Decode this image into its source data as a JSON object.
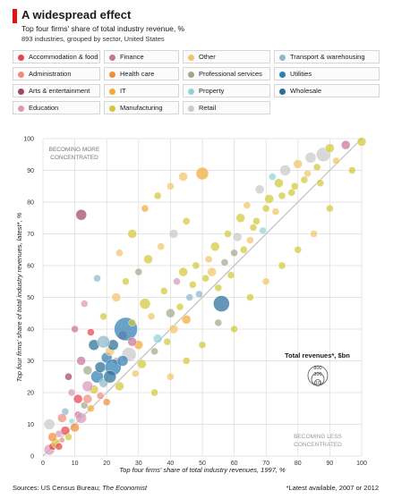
{
  "header": {
    "title": "A widespread effect",
    "subtitle": "Top four firms' share of total industry revenue, %",
    "subtitle2": "893 industries, grouped by sector, United States"
  },
  "legend": {
    "items": [
      {
        "label": "Accommodation & food",
        "color": "#e8434f"
      },
      {
        "label": "Finance",
        "color": "#c9749a"
      },
      {
        "label": "Other",
        "color": "#f2c46b"
      },
      {
        "label": "Transport & warehousing",
        "color": "#8fb9c9"
      },
      {
        "label": "Administration",
        "color": "#f18c7e"
      },
      {
        "label": "Health care",
        "color": "#f08e3a"
      },
      {
        "label": "Professional services",
        "color": "#a3a88a"
      },
      {
        "label": "Utilities",
        "color": "#2f7fb3"
      },
      {
        "label": "Arts & entertainment",
        "color": "#9c4a5e"
      },
      {
        "label": "IT",
        "color": "#f4a93b"
      },
      {
        "label": "Property",
        "color": "#8fd3d8"
      },
      {
        "label": "Wholesale",
        "color": "#2a6f97"
      },
      {
        "label": "Education",
        "color": "#d79ab8"
      },
      {
        "label": "Manufacturing",
        "color": "#d2c73a"
      },
      {
        "label": "Retail",
        "color": "#c9c9c9"
      }
    ]
  },
  "chart_data": {
    "type": "scatter",
    "xlabel": "Top four firms' share of total industry revenues, 1997, %",
    "ylabel": "Top four firms' share of total industry revenues, latest*, %",
    "xlim": [
      0,
      100
    ],
    "ylim": [
      0,
      100
    ],
    "x_ticks": [
      0,
      10,
      20,
      30,
      40,
      50,
      60,
      70,
      80,
      90,
      100
    ],
    "y_ticks": [
      0,
      10,
      20,
      30,
      40,
      50,
      60,
      70,
      80,
      90,
      100
    ],
    "grid": true,
    "annotations": {
      "upper": [
        "BECOMING MORE",
        "CONCENTRATED"
      ],
      "lower": [
        "BECOMING LESS",
        "CONCENTRATED"
      ]
    },
    "size_legend": {
      "title": "Total revenues*, $bn",
      "values": [
        "800",
        "300",
        "10"
      ]
    },
    "points": [
      {
        "x": 2,
        "y": 2,
        "s": 6,
        "c": 12
      },
      {
        "x": 3,
        "y": 3,
        "s": 4,
        "c": 0
      },
      {
        "x": 4,
        "y": 4,
        "s": 5,
        "c": 13
      },
      {
        "x": 5,
        "y": 7,
        "s": 4,
        "c": 12
      },
      {
        "x": 6,
        "y": 5,
        "s": 3,
        "c": 4
      },
      {
        "x": 7,
        "y": 8,
        "s": 5,
        "c": 0
      },
      {
        "x": 8,
        "y": 6,
        "s": 4,
        "c": 13
      },
      {
        "x": 9,
        "y": 11,
        "s": 3,
        "c": 10
      },
      {
        "x": 10,
        "y": 9,
        "s": 5,
        "c": 5
      },
      {
        "x": 11,
        "y": 13,
        "s": 4,
        "c": 1
      },
      {
        "x": 12,
        "y": 12,
        "s": 6,
        "c": 12
      },
      {
        "x": 13,
        "y": 16,
        "s": 4,
        "c": 6
      },
      {
        "x": 14,
        "y": 18,
        "s": 5,
        "c": 4
      },
      {
        "x": 15,
        "y": 15,
        "s": 4,
        "c": 9
      },
      {
        "x": 16,
        "y": 21,
        "s": 5,
        "c": 13
      },
      {
        "x": 17,
        "y": 25,
        "s": 7,
        "c": 7
      },
      {
        "x": 18,
        "y": 28,
        "s": 6,
        "c": 11
      },
      {
        "x": 19,
        "y": 23,
        "s": 5,
        "c": 3
      },
      {
        "x": 20,
        "y": 31,
        "s": 6,
        "c": 7
      },
      {
        "x": 21,
        "y": 33,
        "s": 5,
        "c": 2
      },
      {
        "x": 22,
        "y": 35,
        "s": 6,
        "c": 11
      },
      {
        "x": 23,
        "y": 30,
        "s": 4,
        "c": 12
      },
      {
        "x": 25,
        "y": 38,
        "s": 5,
        "c": 1
      },
      {
        "x": 26,
        "y": 40,
        "s": 13,
        "c": 7
      },
      {
        "x": 28,
        "y": 42,
        "s": 4,
        "c": 13
      },
      {
        "x": 30,
        "y": 35,
        "s": 5,
        "c": 9
      },
      {
        "x": 32,
        "y": 48,
        "s": 6,
        "c": 13
      },
      {
        "x": 34,
        "y": 44,
        "s": 4,
        "c": 2
      },
      {
        "x": 36,
        "y": 37,
        "s": 5,
        "c": 10
      },
      {
        "x": 38,
        "y": 52,
        "s": 4,
        "c": 13
      },
      {
        "x": 40,
        "y": 45,
        "s": 5,
        "c": 6
      },
      {
        "x": 42,
        "y": 55,
        "s": 4,
        "c": 12
      },
      {
        "x": 44,
        "y": 58,
        "s": 5,
        "c": 13
      },
      {
        "x": 46,
        "y": 50,
        "s": 4,
        "c": 3
      },
      {
        "x": 48,
        "y": 60,
        "s": 4,
        "c": 13
      },
      {
        "x": 50,
        "y": 89,
        "s": 7,
        "c": 9
      },
      {
        "x": 52,
        "y": 62,
        "s": 4,
        "c": 2
      },
      {
        "x": 54,
        "y": 66,
        "s": 5,
        "c": 13
      },
      {
        "x": 56,
        "y": 48,
        "s": 9,
        "c": 11
      },
      {
        "x": 58,
        "y": 70,
        "s": 4,
        "c": 13
      },
      {
        "x": 60,
        "y": 64,
        "s": 4,
        "c": 6
      },
      {
        "x": 62,
        "y": 75,
        "s": 5,
        "c": 13
      },
      {
        "x": 64,
        "y": 79,
        "s": 4,
        "c": 2
      },
      {
        "x": 66,
        "y": 72,
        "s": 4,
        "c": 13
      },
      {
        "x": 68,
        "y": 84,
        "s": 5,
        "c": 14
      },
      {
        "x": 70,
        "y": 78,
        "s": 4,
        "c": 13
      },
      {
        "x": 72,
        "y": 88,
        "s": 4,
        "c": 10
      },
      {
        "x": 74,
        "y": 86,
        "s": 5,
        "c": 13
      },
      {
        "x": 76,
        "y": 90,
        "s": 6,
        "c": 14
      },
      {
        "x": 78,
        "y": 83,
        "s": 4,
        "c": 13
      },
      {
        "x": 80,
        "y": 92,
        "s": 5,
        "c": 2
      },
      {
        "x": 82,
        "y": 87,
        "s": 4,
        "c": 13
      },
      {
        "x": 84,
        "y": 94,
        "s": 6,
        "c": 14
      },
      {
        "x": 86,
        "y": 91,
        "s": 4,
        "c": 13
      },
      {
        "x": 88,
        "y": 95,
        "s": 8,
        "c": 14
      },
      {
        "x": 90,
        "y": 97,
        "s": 5,
        "c": 13
      },
      {
        "x": 92,
        "y": 93,
        "s": 4,
        "c": 2
      },
      {
        "x": 95,
        "y": 98,
        "s": 5,
        "c": 1
      },
      {
        "x": 97,
        "y": 90,
        "s": 4,
        "c": 13
      },
      {
        "x": 100,
        "y": 99,
        "s": 5,
        "c": 13
      },
      {
        "x": 12,
        "y": 76,
        "s": 6,
        "c": 8
      },
      {
        "x": 22,
        "y": 28,
        "s": 9,
        "c": 7
      },
      {
        "x": 27,
        "y": 32,
        "s": 8,
        "c": 14
      },
      {
        "x": 2,
        "y": 10,
        "s": 6,
        "c": 14
      },
      {
        "x": 5,
        "y": 3,
        "s": 4,
        "c": 0
      },
      {
        "x": 7,
        "y": 14,
        "s": 4,
        "c": 3
      },
      {
        "x": 9,
        "y": 20,
        "s": 4,
        "c": 12
      },
      {
        "x": 12,
        "y": 30,
        "s": 5,
        "c": 1
      },
      {
        "x": 14,
        "y": 27,
        "s": 5,
        "c": 6
      },
      {
        "x": 16,
        "y": 35,
        "s": 6,
        "c": 11
      },
      {
        "x": 18,
        "y": 19,
        "s": 4,
        "c": 4
      },
      {
        "x": 20,
        "y": 17,
        "s": 4,
        "c": 5
      },
      {
        "x": 24,
        "y": 22,
        "s": 5,
        "c": 13
      },
      {
        "x": 29,
        "y": 26,
        "s": 4,
        "c": 2
      },
      {
        "x": 31,
        "y": 29,
        "s": 5,
        "c": 13
      },
      {
        "x": 35,
        "y": 33,
        "s": 4,
        "c": 6
      },
      {
        "x": 39,
        "y": 36,
        "s": 4,
        "c": 13
      },
      {
        "x": 41,
        "y": 40,
        "s": 5,
        "c": 2
      },
      {
        "x": 43,
        "y": 47,
        "s": 4,
        "c": 13
      },
      {
        "x": 45,
        "y": 43,
        "s": 5,
        "c": 9
      },
      {
        "x": 47,
        "y": 54,
        "s": 4,
        "c": 13
      },
      {
        "x": 49,
        "y": 51,
        "s": 4,
        "c": 3
      },
      {
        "x": 51,
        "y": 56,
        "s": 4,
        "c": 13
      },
      {
        "x": 53,
        "y": 58,
        "s": 5,
        "c": 2
      },
      {
        "x": 55,
        "y": 53,
        "s": 4,
        "c": 13
      },
      {
        "x": 57,
        "y": 61,
        "s": 4,
        "c": 6
      },
      {
        "x": 59,
        "y": 57,
        "s": 4,
        "c": 13
      },
      {
        "x": 61,
        "y": 69,
        "s": 5,
        "c": 14
      },
      {
        "x": 63,
        "y": 65,
        "s": 4,
        "c": 13
      },
      {
        "x": 65,
        "y": 68,
        "s": 4,
        "c": 2
      },
      {
        "x": 67,
        "y": 74,
        "s": 4,
        "c": 13
      },
      {
        "x": 69,
        "y": 71,
        "s": 4,
        "c": 10
      },
      {
        "x": 71,
        "y": 81,
        "s": 5,
        "c": 13
      },
      {
        "x": 73,
        "y": 77,
        "s": 4,
        "c": 2
      },
      {
        "x": 75,
        "y": 82,
        "s": 4,
        "c": 13
      },
      {
        "x": 79,
        "y": 85,
        "s": 4,
        "c": 13
      },
      {
        "x": 83,
        "y": 89,
        "s": 4,
        "c": 2
      },
      {
        "x": 87,
        "y": 86,
        "s": 4,
        "c": 13
      },
      {
        "x": 15,
        "y": 39,
        "s": 4,
        "c": 0
      },
      {
        "x": 19,
        "y": 44,
        "s": 4,
        "c": 13
      },
      {
        "x": 23,
        "y": 50,
        "s": 5,
        "c": 2
      },
      {
        "x": 26,
        "y": 55,
        "s": 4,
        "c": 13
      },
      {
        "x": 30,
        "y": 58,
        "s": 4,
        "c": 6
      },
      {
        "x": 33,
        "y": 62,
        "s": 5,
        "c": 13
      },
      {
        "x": 37,
        "y": 66,
        "s": 4,
        "c": 2
      },
      {
        "x": 41,
        "y": 70,
        "s": 5,
        "c": 14
      },
      {
        "x": 45,
        "y": 74,
        "s": 4,
        "c": 13
      },
      {
        "x": 40,
        "y": 85,
        "s": 4,
        "c": 2
      },
      {
        "x": 60,
        "y": 40,
        "s": 4,
        "c": 13
      },
      {
        "x": 65,
        "y": 50,
        "s": 4,
        "c": 13
      },
      {
        "x": 70,
        "y": 55,
        "s": 4,
        "c": 2
      },
      {
        "x": 75,
        "y": 60,
        "s": 4,
        "c": 13
      },
      {
        "x": 80,
        "y": 65,
        "s": 4,
        "c": 13
      },
      {
        "x": 85,
        "y": 70,
        "s": 4,
        "c": 2
      },
      {
        "x": 90,
        "y": 78,
        "s": 4,
        "c": 13
      },
      {
        "x": 35,
        "y": 20,
        "s": 4,
        "c": 13
      },
      {
        "x": 40,
        "y": 25,
        "s": 4,
        "c": 2
      },
      {
        "x": 45,
        "y": 30,
        "s": 4,
        "c": 13
      },
      {
        "x": 50,
        "y": 35,
        "s": 4,
        "c": 13
      },
      {
        "x": 55,
        "y": 42,
        "s": 4,
        "c": 6
      },
      {
        "x": 8,
        "y": 25,
        "s": 4,
        "c": 8
      },
      {
        "x": 10,
        "y": 40,
        "s": 4,
        "c": 1
      },
      {
        "x": 13,
        "y": 48,
        "s": 4,
        "c": 12
      },
      {
        "x": 17,
        "y": 56,
        "s": 4,
        "c": 3
      },
      {
        "x": 24,
        "y": 64,
        "s": 4,
        "c": 2
      },
      {
        "x": 28,
        "y": 70,
        "s": 5,
        "c": 13
      },
      {
        "x": 32,
        "y": 78,
        "s": 4,
        "c": 9
      },
      {
        "x": 36,
        "y": 82,
        "s": 4,
        "c": 13
      },
      {
        "x": 44,
        "y": 88,
        "s": 5,
        "c": 2
      },
      {
        "x": 21,
        "y": 25,
        "s": 7,
        "c": 11
      },
      {
        "x": 25,
        "y": 30,
        "s": 6,
        "c": 7
      },
      {
        "x": 28,
        "y": 36,
        "s": 5,
        "c": 1
      },
      {
        "x": 19,
        "y": 36,
        "s": 7,
        "c": 3
      },
      {
        "x": 14,
        "y": 22,
        "s": 6,
        "c": 12
      },
      {
        "x": 11,
        "y": 18,
        "s": 5,
        "c": 0
      },
      {
        "x": 6,
        "y": 12,
        "s": 5,
        "c": 4
      },
      {
        "x": 3,
        "y": 6,
        "s": 5,
        "c": 5
      }
    ]
  },
  "footer": {
    "source_prefix": "Sources: US Census Bureau;",
    "source_name": "The Economist",
    "footnote": "*Latest available, 2007 or 2012"
  }
}
